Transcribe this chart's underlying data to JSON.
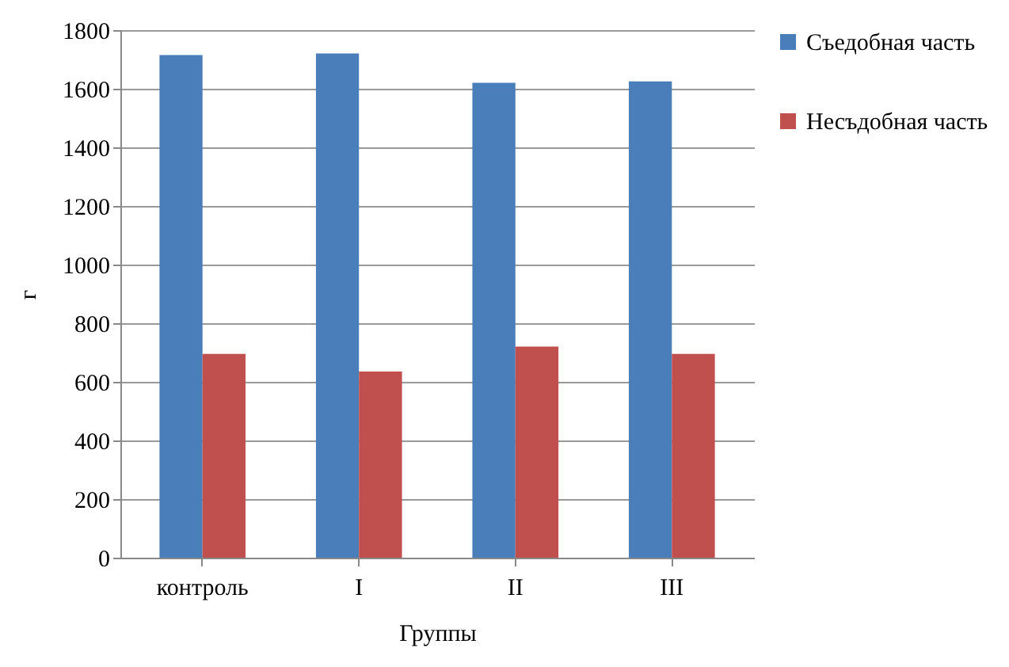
{
  "chart_data": {
    "type": "bar",
    "xlabel": "Группы",
    "ylabel": "г",
    "categories": [
      "контроль",
      "I",
      "II",
      "III"
    ],
    "series": [
      {
        "name": "Съедобная часть",
        "color": "#4a7ebb",
        "values": [
          1715,
          1720,
          1620,
          1625
        ]
      },
      {
        "name": "Несъдобная часть",
        "color": "#c0504d",
        "values": [
          695,
          635,
          720,
          695
        ]
      }
    ],
    "ylim": [
      0,
      1800
    ],
    "yticks": [
      0,
      200,
      400,
      600,
      800,
      1000,
      1200,
      1400,
      1600,
      1800
    ],
    "grid": "y",
    "legend": "right"
  }
}
